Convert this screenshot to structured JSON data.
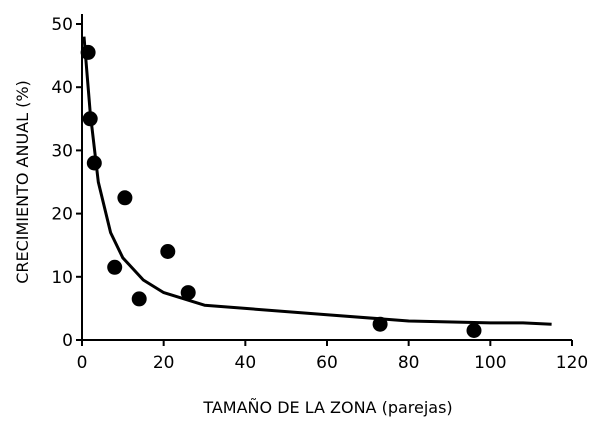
{
  "chart_data": {
    "type": "scatter",
    "title": "",
    "xlabel": "TAMAÑO DE LA ZONA (parejas)",
    "ylabel": "CRECIMIENTO ANUAL (%)",
    "xlim": [
      0,
      120
    ],
    "ylim": [
      0,
      50
    ],
    "x_ticks": [
      "0",
      "20",
      "40",
      "60",
      "80",
      "100",
      "120"
    ],
    "y_ticks": [
      "0",
      "10",
      "20",
      "30",
      "40",
      "50"
    ],
    "grid": false,
    "legend": "none",
    "series": [
      {
        "kind": "points",
        "points": [
          {
            "x": 1.5,
            "y": 45.5
          },
          {
            "x": 2,
            "y": 35
          },
          {
            "x": 3,
            "y": 28
          },
          {
            "x": 10.5,
            "y": 22.5
          },
          {
            "x": 8,
            "y": 11.5
          },
          {
            "x": 21,
            "y": 14
          },
          {
            "x": 14,
            "y": 6.5
          },
          {
            "x": 26,
            "y": 7.5
          },
          {
            "x": 73,
            "y": 2.5
          },
          {
            "x": 96,
            "y": 1.5
          }
        ]
      },
      {
        "kind": "fit-line",
        "points": [
          {
            "x": 0.5,
            "y": 48
          },
          {
            "x": 2,
            "y": 36
          },
          {
            "x": 4,
            "y": 25
          },
          {
            "x": 7,
            "y": 17
          },
          {
            "x": 10,
            "y": 13
          },
          {
            "x": 15,
            "y": 9.5
          },
          {
            "x": 20,
            "y": 7.5
          },
          {
            "x": 30,
            "y": 5.5
          },
          {
            "x": 40,
            "y": 5
          },
          {
            "x": 60,
            "y": 4
          },
          {
            "x": 80,
            "y": 3
          },
          {
            "x": 100,
            "y": 2.7
          },
          {
            "x": 108,
            "y": 2.7
          },
          {
            "x": 115,
            "y": 2.5
          }
        ]
      }
    ]
  }
}
